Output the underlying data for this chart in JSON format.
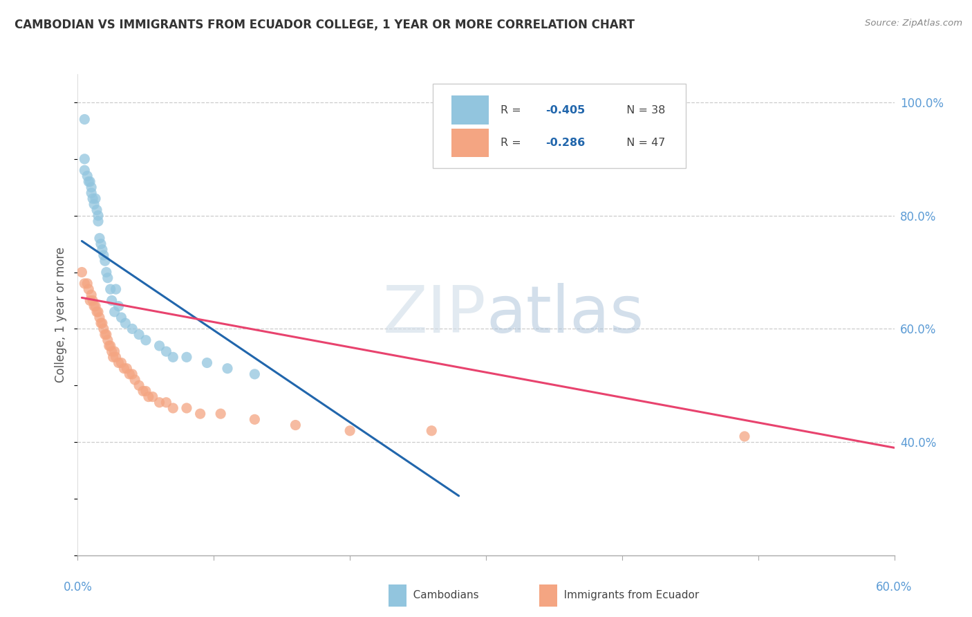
{
  "title": "CAMBODIAN VS IMMIGRANTS FROM ECUADOR COLLEGE, 1 YEAR OR MORE CORRELATION CHART",
  "source_text": "Source: ZipAtlas.com",
  "ylabel": "College, 1 year or more",
  "xlim": [
    0.0,
    0.6
  ],
  "ylim": [
    0.2,
    1.05
  ],
  "blue_color": "#92c5de",
  "pink_color": "#f4a582",
  "blue_line_color": "#2166ac",
  "pink_line_color": "#e8436e",
  "title_color": "#333333",
  "watermark_color_zip": "#c5d5e8",
  "watermark_color_atlas": "#b8cfe8",
  "legend_text1": "R = -0.405",
  "legend_n1": "N = 38",
  "legend_text2": "R = -0.286",
  "legend_n2": "N = 47",
  "cambodians_x": [
    0.005,
    0.005,
    0.005,
    0.007,
    0.008,
    0.009,
    0.01,
    0.01,
    0.011,
    0.012,
    0.013,
    0.014,
    0.015,
    0.015,
    0.016,
    0.017,
    0.018,
    0.019,
    0.02,
    0.021,
    0.022,
    0.024,
    0.025,
    0.027,
    0.028,
    0.03,
    0.032,
    0.035,
    0.04,
    0.045,
    0.05,
    0.06,
    0.065,
    0.07,
    0.08,
    0.095,
    0.11,
    0.13
  ],
  "cambodians_y": [
    0.97,
    0.9,
    0.88,
    0.87,
    0.86,
    0.86,
    0.85,
    0.84,
    0.83,
    0.82,
    0.83,
    0.81,
    0.8,
    0.79,
    0.76,
    0.75,
    0.74,
    0.73,
    0.72,
    0.7,
    0.69,
    0.67,
    0.65,
    0.63,
    0.67,
    0.64,
    0.62,
    0.61,
    0.6,
    0.59,
    0.58,
    0.57,
    0.56,
    0.55,
    0.55,
    0.54,
    0.53,
    0.52
  ],
  "ecuador_x": [
    0.003,
    0.005,
    0.007,
    0.008,
    0.009,
    0.01,
    0.011,
    0.012,
    0.013,
    0.014,
    0.015,
    0.016,
    0.017,
    0.018,
    0.019,
    0.02,
    0.021,
    0.022,
    0.023,
    0.024,
    0.025,
    0.026,
    0.027,
    0.028,
    0.03,
    0.032,
    0.034,
    0.036,
    0.038,
    0.04,
    0.042,
    0.045,
    0.048,
    0.05,
    0.052,
    0.055,
    0.06,
    0.065,
    0.07,
    0.08,
    0.09,
    0.105,
    0.13,
    0.16,
    0.2,
    0.26,
    0.49
  ],
  "ecuador_y": [
    0.7,
    0.68,
    0.68,
    0.67,
    0.65,
    0.66,
    0.65,
    0.64,
    0.64,
    0.63,
    0.63,
    0.62,
    0.61,
    0.61,
    0.6,
    0.59,
    0.59,
    0.58,
    0.57,
    0.57,
    0.56,
    0.55,
    0.56,
    0.55,
    0.54,
    0.54,
    0.53,
    0.53,
    0.52,
    0.52,
    0.51,
    0.5,
    0.49,
    0.49,
    0.48,
    0.48,
    0.47,
    0.47,
    0.46,
    0.46,
    0.45,
    0.45,
    0.44,
    0.43,
    0.42,
    0.42,
    0.41
  ],
  "blue_trendline_x": [
    0.003,
    0.28
  ],
  "blue_trendline_y": [
    0.755,
    0.305
  ],
  "pink_trendline_x": [
    0.003,
    0.6
  ],
  "pink_trendline_y": [
    0.655,
    0.39
  ],
  "yticks": [
    0.4,
    0.6,
    0.8,
    1.0
  ],
  "ytick_labels_right": [
    "40.0%",
    "60.0%",
    "80.0%",
    "100.0%"
  ],
  "xtick_positions": [
    0.0,
    0.1,
    0.2,
    0.3,
    0.4,
    0.5,
    0.6
  ]
}
